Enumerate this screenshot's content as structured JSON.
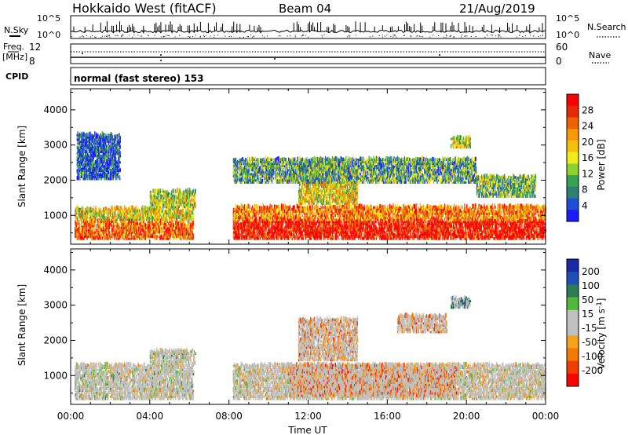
{
  "header": {
    "station": "Hokkaido West (fitACF)",
    "beam": "Beam 04",
    "date": "21/Aug/2019"
  },
  "noise_panel": {
    "left_label": "N.Sky",
    "right_label": "N.Search",
    "left_ticks": [
      "10^5",
      "10^0"
    ],
    "right_ticks": [
      "10^5",
      "10^0"
    ]
  },
  "freq_panel": {
    "left_label_1": "Freq.",
    "left_label_2": "[MHz]",
    "left_ticks": [
      "12",
      "8"
    ],
    "right_label": "Nave",
    "right_ticks": [
      "60",
      "0"
    ]
  },
  "cpid_panel": {
    "label": "CPID",
    "text": "normal (fast stereo) 153"
  },
  "chart_data": [
    {
      "type": "heatmap",
      "name": "power",
      "ylabel": "Slant Range [km]",
      "xlabel": "",
      "x_range_hours": [
        0,
        24
      ],
      "ylim": [
        180,
        4600
      ],
      "y_ticks": [
        1000,
        2000,
        3000,
        4000
      ],
      "colorbar": {
        "label": "Power [dB]",
        "ticks": [
          4,
          8,
          12,
          16,
          20,
          24,
          28
        ],
        "colors": [
          "#1a1aff",
          "#1e4fd6",
          "#2e7f74",
          "#36a254",
          "#8cd12e",
          "#f2ec19",
          "#f7bf0a",
          "#f79a05",
          "#f06005",
          "#e52a00",
          "#ff0000"
        ]
      },
      "regions": [
        {
          "t": [
            0.2,
            6.2
          ],
          "r": [
            300,
            1200
          ],
          "level": 0.55
        },
        {
          "t": [
            4.0,
            6.3
          ],
          "r": [
            1200,
            1700
          ],
          "level": 0.45
        },
        {
          "t": [
            0.3,
            2.5
          ],
          "r": [
            2000,
            3300
          ],
          "level": 0.1
        },
        {
          "t": [
            8.2,
            24.0
          ],
          "r": [
            300,
            1250
          ],
          "level": 0.75
        },
        {
          "t": [
            11.5,
            14.5
          ],
          "r": [
            1300,
            2500
          ],
          "level": 0.55
        },
        {
          "t": [
            8.2,
            20.5
          ],
          "r": [
            1900,
            2600
          ],
          "level": 0.3
        },
        {
          "t": [
            19.2,
            20.2
          ],
          "r": [
            2900,
            3200
          ],
          "level": 0.45
        },
        {
          "t": [
            20.5,
            23.5
          ],
          "r": [
            1500,
            2100
          ],
          "level": 0.35
        }
      ]
    },
    {
      "type": "heatmap",
      "name": "velocity",
      "ylabel": "Slant Range [km]",
      "xlabel": "Time UT",
      "x_range_hours": [
        0,
        24
      ],
      "x_tick_labels": [
        "00:00",
        "04:00",
        "08:00",
        "12:00",
        "16:00",
        "20:00",
        "00:00"
      ],
      "ylim": [
        180,
        4600
      ],
      "y_ticks": [
        1000,
        2000,
        3000,
        4000
      ],
      "colorbar": {
        "label": "Velocity [m s^-1]",
        "ticks": [
          200,
          100,
          50,
          15,
          -15,
          -50,
          -100,
          -200
        ],
        "colors": [
          "#1a2aa6",
          "#1f4fb8",
          "#2f7a57",
          "#51b93a",
          "#c0c0c0",
          "#c0c0c0",
          "#f7a21a",
          "#f57a05",
          "#f23d00",
          "#ff0000"
        ]
      },
      "regions": [
        {
          "t": [
            0.2,
            6.2
          ],
          "r": [
            300,
            1300
          ],
          "level": 0.5
        },
        {
          "t": [
            4.0,
            6.3
          ],
          "r": [
            1300,
            1700
          ],
          "level": 0.5
        },
        {
          "t": [
            8.2,
            24.0
          ],
          "r": [
            300,
            1300
          ],
          "level": 0.55
        },
        {
          "t": [
            11.0,
            19.5
          ],
          "r": [
            400,
            1300
          ],
          "level": 0.75
        },
        {
          "t": [
            11.5,
            14.5
          ],
          "r": [
            1400,
            2600
          ],
          "level": 0.7
        },
        {
          "t": [
            16.5,
            19.0
          ],
          "r": [
            2200,
            2700
          ],
          "level": 0.75
        },
        {
          "t": [
            19.2,
            20.2
          ],
          "r": [
            2900,
            3200
          ],
          "level": 0.2
        }
      ]
    }
  ]
}
